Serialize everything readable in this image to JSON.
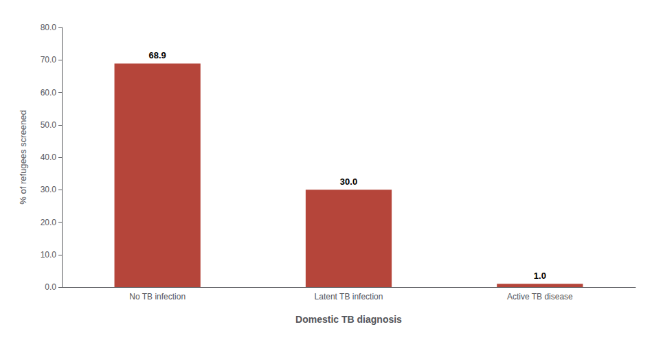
{
  "chart_data": {
    "type": "bar",
    "xlabel": "Domestic TB diagnosis",
    "ylabel": "% of refugees screened",
    "categories": [
      "No TB infection",
      "Latent TB infection",
      "Active TB disease"
    ],
    "values": [
      68.9,
      30.0,
      1.0
    ],
    "value_labels": [
      "68.9",
      "30.0",
      "1.0"
    ],
    "data_labels": true,
    "color": "#b5453a",
    "ylim": [
      0,
      80
    ],
    "yticks": [
      {
        "value": 0,
        "label": "0.0"
      },
      {
        "value": 10,
        "label": "10.0"
      },
      {
        "value": 20,
        "label": "20.0"
      },
      {
        "value": 30,
        "label": "30.0"
      },
      {
        "value": 40,
        "label": "40.0"
      },
      {
        "value": 50,
        "label": "50.0"
      },
      {
        "value": 60,
        "label": "60.0"
      },
      {
        "value": 70,
        "label": "70.0"
      },
      {
        "value": 80,
        "label": "80.0"
      }
    ],
    "grid": false
  }
}
